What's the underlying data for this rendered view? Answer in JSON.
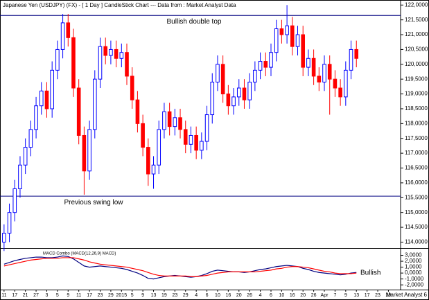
{
  "chart_data": {
    "type": "candlestick",
    "title": "Japanese Yen (USDJPY) (FX) -  [ 1 Day ] CandleStick Chart --- Data from : Market Analyst Data",
    "footer": "Market Analyst 6",
    "up_color": "#0000ff",
    "down_color": "#ff0000",
    "categories": [
      "11",
      null,
      "17",
      null,
      "21",
      null,
      "27",
      null,
      "3",
      null,
      "5",
      null,
      "9",
      null,
      "11",
      null,
      "17",
      null,
      "23",
      null,
      "29",
      null,
      "2015",
      null,
      "5",
      null,
      "9",
      null,
      "13",
      null,
      "19",
      null,
      "23",
      null,
      "29",
      null,
      "4",
      null,
      "6",
      null,
      "10",
      null,
      "16",
      null,
      "20",
      null,
      "26",
      null,
      "4",
      null,
      "6",
      null,
      "10",
      null,
      "16",
      null,
      "20",
      null,
      "26",
      null,
      "Apr",
      null,
      "7",
      null,
      "9",
      null,
      "13",
      null,
      "17",
      null,
      "23",
      null,
      "29",
      null
    ],
    "open": [
      114.0,
      114.3,
      115.0,
      115.8,
      116.6,
      117.2,
      117.8,
      118.6,
      119.1,
      118.5,
      119.8,
      120.5,
      121.4,
      120.9,
      119.2,
      117.6,
      116.4,
      117.8,
      119.5,
      120.6,
      120.3,
      120.5,
      120.2,
      120.4,
      119.6,
      118.8,
      118.0,
      117.2,
      116.3,
      116.6,
      117.8,
      118.4,
      117.9,
      118.2,
      117.8,
      117.3,
      117.6,
      117.1,
      117.4,
      118.3,
      119.4,
      120.0,
      119.0,
      118.6,
      118.9,
      119.2,
      118.8,
      119.4,
      119.8,
      120.1,
      119.9,
      120.4,
      121.2,
      121.0,
      121.3,
      120.6,
      121.0,
      119.9,
      120.2,
      119.6,
      119.4,
      120.0,
      119.5,
      119.2,
      118.9,
      119.8,
      120.5,
      null,
      null,
      null,
      null,
      null,
      null,
      null
    ],
    "high": [
      114.6,
      115.3,
      116.1,
      116.9,
      117.5,
      118.1,
      118.9,
      119.4,
      119.4,
      120.1,
      120.8,
      121.7,
      121.7,
      121.2,
      119.5,
      117.9,
      118.1,
      119.8,
      120.9,
      120.9,
      120.8,
      120.8,
      120.7,
      120.7,
      119.9,
      119.1,
      118.3,
      117.5,
      116.9,
      118.1,
      118.7,
      118.7,
      118.5,
      118.5,
      118.1,
      117.9,
      117.9,
      117.7,
      118.6,
      119.7,
      120.3,
      120.3,
      119.3,
      119.2,
      119.5,
      119.5,
      119.7,
      120.1,
      120.4,
      120.4,
      120.7,
      121.5,
      121.5,
      122.0,
      121.6,
      121.3,
      121.3,
      120.5,
      120.5,
      119.9,
      120.3,
      120.3,
      119.8,
      119.5,
      120.1,
      120.8,
      120.8,
      null,
      null,
      null,
      null,
      null,
      null,
      null
    ],
    "low": [
      113.7,
      114.0,
      114.7,
      115.5,
      116.3,
      116.9,
      117.5,
      118.3,
      118.2,
      118.2,
      119.5,
      120.2,
      120.6,
      118.9,
      117.3,
      115.6,
      116.1,
      117.5,
      119.2,
      120.0,
      120.0,
      119.9,
      119.9,
      119.3,
      118.5,
      117.7,
      116.9,
      115.9,
      115.8,
      116.3,
      117.5,
      117.6,
      117.6,
      117.5,
      117.0,
      117.0,
      116.8,
      116.8,
      117.1,
      118.0,
      119.1,
      118.7,
      118.3,
      118.3,
      118.6,
      118.5,
      118.5,
      119.1,
      119.5,
      119.6,
      119.6,
      120.1,
      120.7,
      120.7,
      120.3,
      120.3,
      119.6,
      119.6,
      119.3,
      119.1,
      119.1,
      118.3,
      118.9,
      118.6,
      118.6,
      119.5,
      119.9,
      null,
      null,
      null,
      null,
      null,
      null,
      null
    ],
    "close": [
      114.3,
      115.0,
      115.8,
      116.6,
      117.2,
      117.8,
      118.6,
      119.1,
      118.5,
      119.8,
      120.5,
      121.4,
      120.9,
      119.2,
      117.6,
      116.4,
      117.8,
      119.5,
      120.6,
      120.3,
      120.5,
      120.2,
      120.4,
      119.6,
      118.8,
      118.0,
      117.2,
      116.3,
      116.6,
      117.8,
      118.4,
      117.9,
      118.2,
      117.8,
      117.3,
      117.6,
      117.1,
      117.4,
      118.3,
      119.4,
      120.0,
      119.0,
      118.6,
      118.9,
      119.2,
      118.8,
      119.4,
      119.8,
      120.1,
      119.9,
      120.4,
      121.2,
      121.0,
      121.3,
      120.6,
      121.0,
      119.9,
      120.2,
      119.6,
      119.4,
      120.0,
      119.5,
      119.2,
      118.9,
      119.8,
      120.5,
      120.2,
      null,
      null,
      null,
      null,
      null,
      null,
      null
    ],
    "ylim": [
      113.8,
      122.1
    ],
    "yticks": [
      {
        "value": 114,
        "label": "114,0000"
      },
      {
        "value": 114.5,
        "label": "114,5000"
      },
      {
        "value": 115,
        "label": "115,0000"
      },
      {
        "value": 115.5,
        "label": "115,5000"
      },
      {
        "value": 116,
        "label": "116,0000"
      },
      {
        "value": 116.5,
        "label": "116,5000"
      },
      {
        "value": 117,
        "label": "117,0000"
      },
      {
        "value": 117.5,
        "label": "117,5000"
      },
      {
        "value": 118,
        "label": "118,0000"
      },
      {
        "value": 118.5,
        "label": "118,5000"
      },
      {
        "value": 119,
        "label": "119,0000"
      },
      {
        "value": 119.5,
        "label": "119,5000"
      },
      {
        "value": 120,
        "label": "120,0000"
      },
      {
        "value": 120.5,
        "label": "120,5000"
      },
      {
        "value": 121,
        "label": "121,0000"
      },
      {
        "value": 121.5,
        "label": "121,5000"
      },
      {
        "value": 122,
        "label": "122,0000"
      }
    ],
    "reference_lines": [
      {
        "value": 121.65,
        "label": "Bullish double top",
        "color": "#000080"
      },
      {
        "value": 115.55,
        "label": "Previous swing low",
        "color": "#000080"
      }
    ],
    "macd": {
      "legend": "MACD Combo (MACD(12,26,9) MACD)",
      "annotation": "Bullish",
      "ylim": [
        -2.8,
        4.0
      ],
      "yticks": [
        {
          "value": 3,
          "label": "3,0000"
        },
        {
          "value": 2,
          "label": "2,0000"
        },
        {
          "value": 1,
          "label": "1,0000"
        },
        {
          "value": 0,
          "label": "0,0000"
        },
        {
          "value": -1,
          "label": "-1,0000"
        },
        {
          "value": -2,
          "label": "-2,0000"
        }
      ],
      "series": [
        {
          "color": "#000080",
          "values": [
            1.5,
            1.8,
            2.1,
            2.3,
            2.5,
            2.6,
            2.7,
            2.7,
            2.6,
            2.6,
            2.7,
            2.9,
            2.8,
            2.4,
            1.8,
            1.2,
            1.0,
            1.1,
            1.2,
            1.1,
            1.0,
            0.9,
            0.8,
            0.6,
            0.3,
            0,
            -0.4,
            -0.9,
            -1.0,
            -0.8,
            -0.6,
            -0.5,
            -0.4,
            -0.5,
            -0.6,
            -0.7,
            -0.6,
            -0.4,
            -0.1,
            0.3,
            0.5,
            0.4,
            0.3,
            0.2,
            0.2,
            0.1,
            0.2,
            0.4,
            0.6,
            0.7,
            0.9,
            1.1,
            1.2,
            1.3,
            1.2,
            1.1,
            0.8,
            0.6,
            0.3,
            0.1,
            0,
            -0.1,
            -0.2,
            -0.3,
            -0.2,
            0,
            0.1,
            null,
            null,
            null,
            null,
            null,
            null,
            null
          ]
        },
        {
          "color": "#ff0000",
          "values": [
            1.2,
            1.4,
            1.6,
            1.8,
            2.0,
            2.2,
            2.3,
            2.4,
            2.5,
            2.5,
            2.5,
            2.6,
            2.6,
            2.6,
            2.4,
            2.2,
            1.9,
            1.7,
            1.5,
            1.4,
            1.3,
            1.2,
            1.1,
            1.0,
            0.8,
            0.6,
            0.4,
            0.1,
            -0.2,
            -0.4,
            -0.5,
            -0.5,
            -0.5,
            -0.5,
            -0.5,
            -0.6,
            -0.6,
            -0.5,
            -0.4,
            -0.2,
            0,
            0.1,
            0.2,
            0.2,
            0.2,
            0.2,
            0.2,
            0.2,
            0.3,
            0.4,
            0.5,
            0.7,
            0.8,
            1.0,
            1.1,
            1.1,
            1.0,
            0.9,
            0.7,
            0.5,
            0.3,
            0.2,
            0,
            -0.1,
            -0.1,
            -0.1,
            0,
            null,
            null,
            null,
            null,
            null,
            null,
            null
          ]
        }
      ]
    }
  }
}
